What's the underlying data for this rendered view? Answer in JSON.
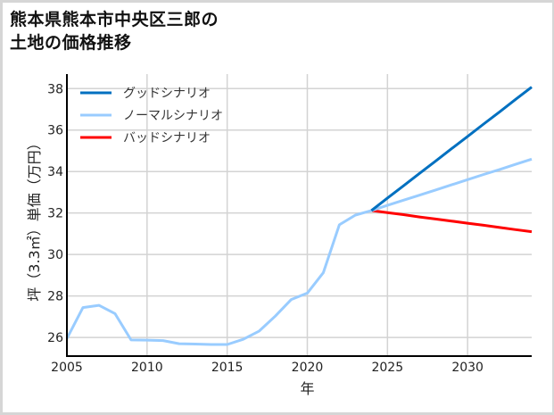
{
  "title": {
    "line1": "熊本県熊本市中央区三郎の",
    "line2": "土地の価格推移"
  },
  "chart_data": {
    "type": "line",
    "title": "熊本県熊本市中央区三郎の土地の価格推移",
    "xlabel": "年",
    "ylabel": "坪（3.3㎡）単価（万円）",
    "xlim": [
      2005,
      2034
    ],
    "ylim": [
      25.1,
      38.7
    ],
    "xticks": [
      2005,
      2010,
      2015,
      2020,
      2025,
      2030
    ],
    "xtick_labels": [
      "2005",
      "2010",
      "2015",
      "2020",
      "2025",
      "2030"
    ],
    "yticks": [
      26,
      28,
      30,
      32,
      34,
      36,
      38
    ],
    "ytick_labels": [
      "26",
      "28",
      "30",
      "32",
      "34",
      "36",
      "38"
    ],
    "grid": true,
    "legend_position": "upper left",
    "series": [
      {
        "name": "グッドシナリオ",
        "color": "#0070C0",
        "x": [
          2024,
          2025,
          2026,
          2027,
          2028,
          2029,
          2030,
          2031,
          2032,
          2033,
          2034
        ],
        "values": [
          32.12,
          32.72,
          33.31,
          33.91,
          34.5,
          35.1,
          35.69,
          36.29,
          36.88,
          37.48,
          38.07
        ]
      },
      {
        "name": "ノーマルシナリオ",
        "color": "#99CCFF",
        "x": [
          2005,
          2006,
          2007,
          2008,
          2009,
          2010,
          2011,
          2012,
          2013,
          2014,
          2015,
          2016,
          2017,
          2018,
          2019,
          2020,
          2021,
          2022,
          2023,
          2024,
          2025,
          2026,
          2027,
          2028,
          2029,
          2030,
          2031,
          2032,
          2033,
          2034
        ],
        "values": [
          25.95,
          27.44,
          27.55,
          27.15,
          25.88,
          25.87,
          25.85,
          25.7,
          25.68,
          25.66,
          25.66,
          25.91,
          26.31,
          27.03,
          27.83,
          28.14,
          29.12,
          31.43,
          31.9,
          32.12,
          32.37,
          32.62,
          32.86,
          33.11,
          33.36,
          33.61,
          33.86,
          34.1,
          34.35,
          34.6
        ]
      },
      {
        "name": "バッドシナリオ",
        "color": "#FF0000",
        "x": [
          2024,
          2025,
          2026,
          2027,
          2028,
          2029,
          2030,
          2031,
          2032,
          2033,
          2034
        ],
        "values": [
          32.12,
          32.02,
          31.92,
          31.81,
          31.71,
          31.61,
          31.51,
          31.41,
          31.3,
          31.2,
          31.1
        ]
      }
    ]
  }
}
